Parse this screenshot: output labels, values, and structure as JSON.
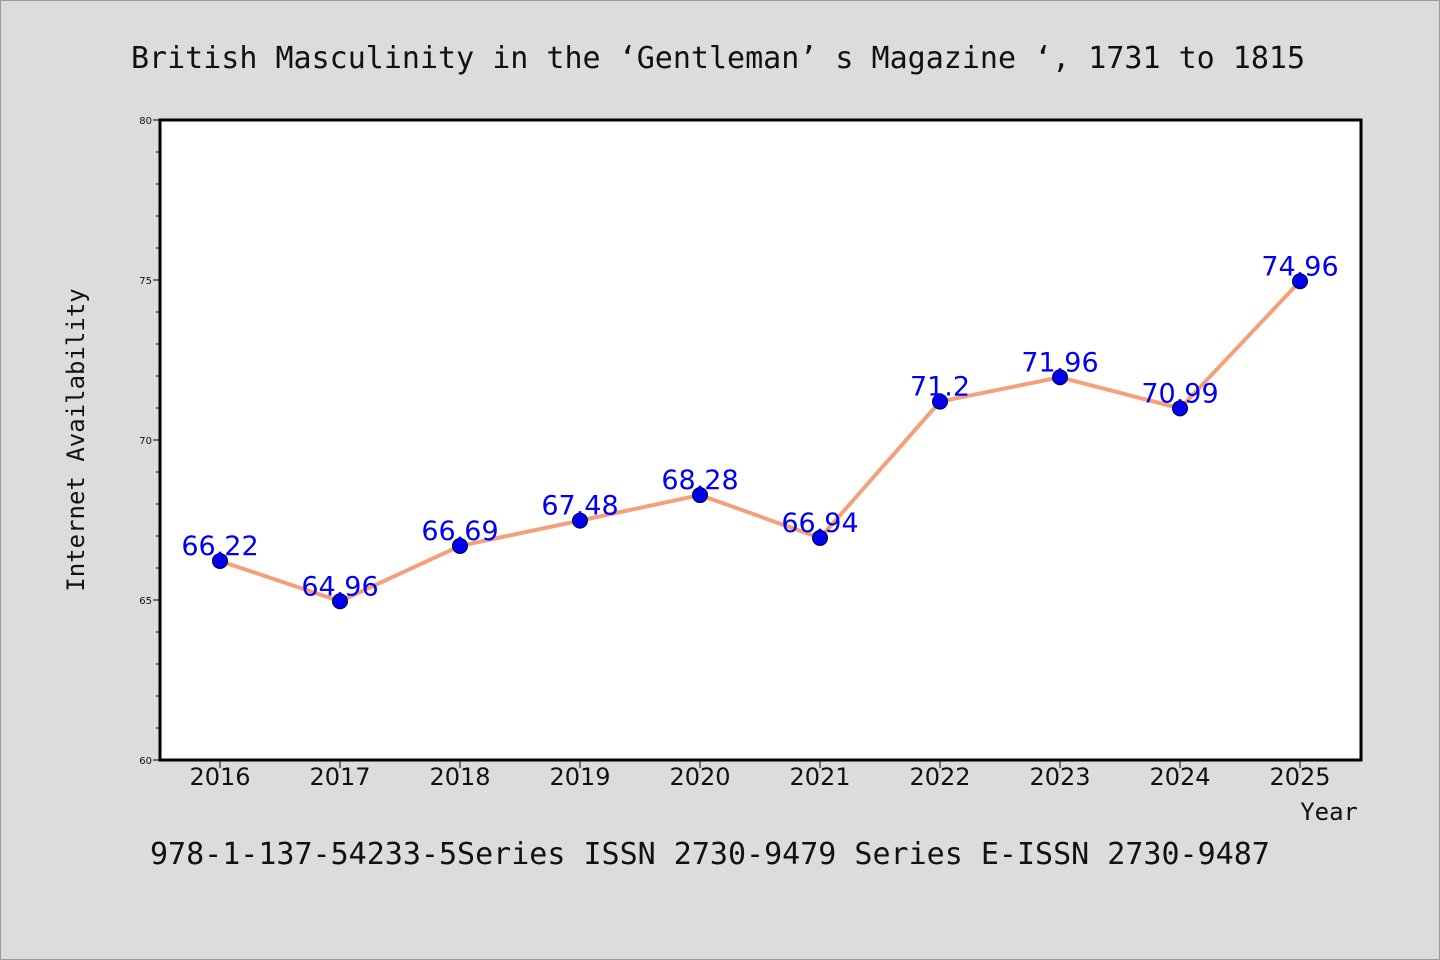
{
  "colors": {
    "background": "#dcdcdc",
    "plot_background": "#ffffff",
    "line": "#f4a07a",
    "marker": "#0000ee",
    "data_label": "#0000ee"
  },
  "footer": "978-1-137-54233-5Series ISSN 2730-9479 Series E-ISSN 2730-9487",
  "chart_data": {
    "type": "line",
    "title": "British Masculinity in the  ‘Gentleman’ s Magazine ‘, 1731 to 1815",
    "xlabel": "Year",
    "ylabel": "Internet Availability",
    "categories": [
      "2016",
      "2017",
      "2018",
      "2019",
      "2020",
      "2021",
      "2022",
      "2023",
      "2024",
      "2025"
    ],
    "series": [
      {
        "values": [
          66.22,
          64.96,
          66.69,
          67.48,
          68.28,
          66.94,
          71.2,
          71.96,
          70.99,
          74.96
        ],
        "labels": [
          "66.22",
          "64.96",
          "66.69",
          "67.48",
          "68.28",
          "66.94",
          "71.2",
          "71.96",
          "70.99",
          "74.96"
        ]
      }
    ],
    "ylim": [
      60,
      80
    ],
    "yticks": [
      "60",
      "65",
      "70",
      "75",
      "80"
    ],
    "grid": false,
    "legend": "none"
  }
}
